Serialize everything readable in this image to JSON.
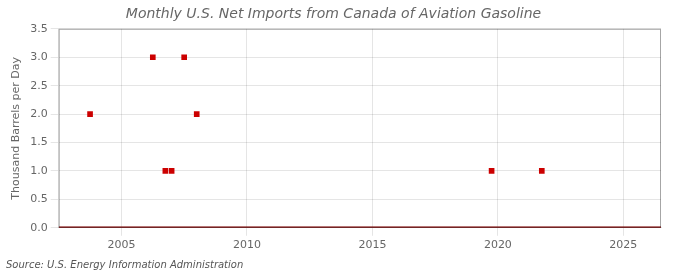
{
  "chart_data": {
    "type": "scatter",
    "title": "Monthly U.S. Net Imports from Canada of Aviation Gasoline",
    "ylabel": "Thousand Barrels per Day",
    "source": "Source: U.S. Energy Information Administration",
    "series": [
      {
        "type": "line",
        "color": "#8b0000",
        "x": [
          2002.5,
          2026.5
        ],
        "values": [
          0,
          0
        ]
      },
      {
        "type": "scatter",
        "marker": "square",
        "color": "#cc0000",
        "x": [
          2003.75,
          2006.25,
          2006.75,
          2007.0,
          2007.5,
          2008.0,
          2019.75,
          2021.75
        ],
        "values": [
          2.0,
          3.0,
          1.0,
          1.0,
          3.0,
          2.0,
          1.0,
          1.0
        ]
      }
    ],
    "xlim": [
      2002.5,
      2026.5
    ],
    "xticks": [
      2005,
      2010,
      2015,
      2020,
      2025
    ],
    "ylim": [
      0,
      3.5
    ],
    "yticks": [
      {
        "value": 0.0,
        "label": "0.0"
      },
      0.5,
      {
        "value": 1.0,
        "label": "1.0"
      },
      1.5,
      {
        "value": 2.0,
        "label": "2.0"
      },
      2.5,
      {
        "value": 3.0,
        "label": "3.0"
      },
      3.5
    ],
    "grid": true
  }
}
